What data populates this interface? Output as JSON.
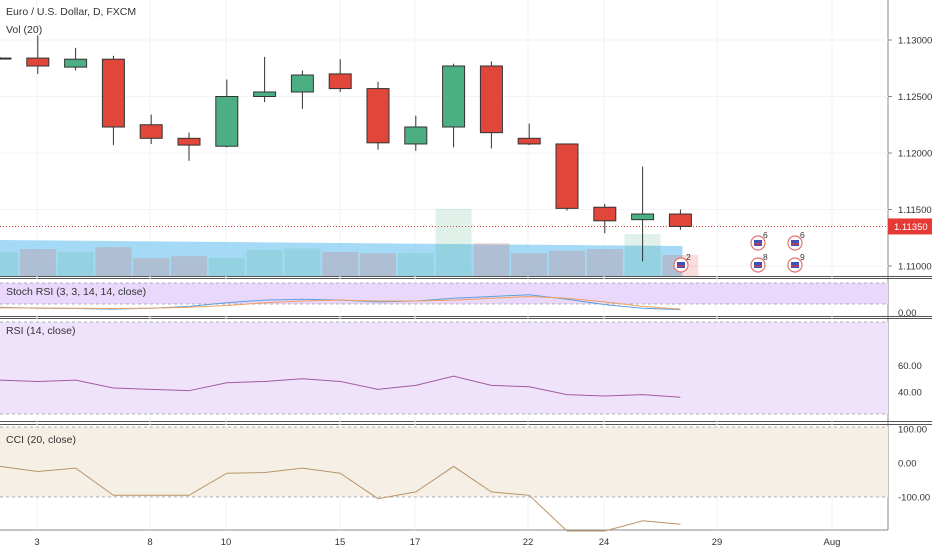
{
  "header": {
    "symbol_title": "Euro / U.S. Dollar, D, FXCM",
    "volume_label": "Vol (20)"
  },
  "price_axis": {
    "ticks": [
      "1.13000",
      "1.12500",
      "1.12000",
      "1.11500",
      "1.11000"
    ],
    "current_price": "1.11350",
    "current_price_color": "#e53935"
  },
  "time_axis": {
    "ticks": [
      "3",
      "8",
      "10",
      "15",
      "17",
      "22",
      "24",
      "29",
      "Aug"
    ]
  },
  "colors": {
    "up": "#4caf84",
    "down": "#e0463a",
    "volume_area": "#7ecbf2",
    "stoch_band": "#e9d8fb",
    "rsi_band": "#efe3fc",
    "cci_band": "#f6efe6",
    "rsi_line": "#a05aa0",
    "cci_line": "#b8946a"
  },
  "chart_data": {
    "type": "candlestick",
    "title": "Euro / U.S. Dollar, D, FXCM",
    "y_ticks": [
      1.11,
      1.115,
      1.12,
      1.125,
      1.13
    ],
    "x_ticks": [
      "3",
      "8",
      "10",
      "15",
      "17",
      "22",
      "24",
      "29",
      "Aug"
    ],
    "candles": [
      {
        "o": 1.1284,
        "h": 1.1285,
        "l": 1.1284,
        "c": 1.1284
      },
      {
        "o": 1.1284,
        "h": 1.1304,
        "l": 1.127,
        "c": 1.1277
      },
      {
        "o": 1.1276,
        "h": 1.1293,
        "l": 1.1273,
        "c": 1.1283
      },
      {
        "o": 1.1283,
        "h": 1.1286,
        "l": 1.1207,
        "c": 1.1223
      },
      {
        "o": 1.1225,
        "h": 1.1234,
        "l": 1.1208,
        "c": 1.1213
      },
      {
        "o": 1.1213,
        "h": 1.1218,
        "l": 1.1193,
        "c": 1.1207
      },
      {
        "o": 1.1206,
        "h": 1.1265,
        "l": 1.1205,
        "c": 1.125
      },
      {
        "o": 1.125,
        "h": 1.1285,
        "l": 1.1245,
        "c": 1.1254
      },
      {
        "o": 1.1254,
        "h": 1.1273,
        "l": 1.1239,
        "c": 1.1269
      },
      {
        "o": 1.127,
        "h": 1.1283,
        "l": 1.1254,
        "c": 1.1257
      },
      {
        "o": 1.1257,
        "h": 1.1263,
        "l": 1.1203,
        "c": 1.1209
      },
      {
        "o": 1.1208,
        "h": 1.1233,
        "l": 1.1202,
        "c": 1.1223
      },
      {
        "o": 1.1223,
        "h": 1.1279,
        "l": 1.1205,
        "c": 1.1277
      },
      {
        "o": 1.1277,
        "h": 1.1281,
        "l": 1.1204,
        "c": 1.1218
      },
      {
        "o": 1.1213,
        "h": 1.1226,
        "l": 1.1207,
        "c": 1.1208
      },
      {
        "o": 1.1208,
        "h": 1.1208,
        "l": 1.1149,
        "c": 1.1151
      },
      {
        "o": 1.1152,
        "h": 1.1155,
        "l": 1.1129,
        "c": 1.114
      },
      {
        "o": 1.1141,
        "h": 1.1188,
        "l": 1.1104,
        "c": 1.1146
      },
      {
        "o": 1.1146,
        "h": 1.115,
        "l": 1.1132,
        "c": 1.1135
      }
    ],
    "volume": [
      40,
      45,
      40,
      48,
      30,
      33,
      30,
      43,
      46,
      40,
      38,
      38,
      112,
      55,
      38,
      42,
      45,
      70,
      35
    ],
    "event_markers": [
      {
        "count": "2"
      },
      {
        "count": "6"
      },
      {
        "count": "8"
      },
      {
        "count": "6"
      },
      {
        "count": "9"
      }
    ],
    "stoch_rsi": {
      "label": "Stoch RSI (3, 3, 14, 14, close)",
      "k": [
        0.15,
        0.1,
        0.08,
        0.05,
        0.1,
        0.2,
        0.4,
        0.55,
        0.6,
        0.55,
        0.45,
        0.5,
        0.65,
        0.75,
        0.85,
        0.6,
        0.3,
        0.1,
        0.02
      ],
      "d": [
        0.12,
        0.12,
        0.1,
        0.08,
        0.1,
        0.15,
        0.25,
        0.4,
        0.5,
        0.55,
        0.5,
        0.5,
        0.55,
        0.65,
        0.75,
        0.65,
        0.45,
        0.2,
        0.05
      ],
      "upper": 80,
      "lower": 20,
      "tick": "0.00"
    },
    "rsi": {
      "label": "RSI (14, close)",
      "values": [
        49,
        48,
        49,
        43,
        42,
        41,
        47,
        48,
        50,
        48,
        42,
        45,
        52,
        45,
        44,
        38,
        37,
        38,
        36
      ],
      "ticks": [
        "60.00",
        "40.00"
      ],
      "upper": 70,
      "lower": 30
    },
    "cci": {
      "label": "CCI (20, close)",
      "values": [
        -10,
        -25,
        -15,
        -95,
        -95,
        -95,
        -30,
        -28,
        -15,
        -30,
        -105,
        -85,
        -10,
        -85,
        -95,
        -200,
        -200,
        -170,
        -180
      ],
      "ticks": [
        "100.00",
        "0.00",
        "-100.00"
      ],
      "upper": 100,
      "lower": -100
    }
  }
}
